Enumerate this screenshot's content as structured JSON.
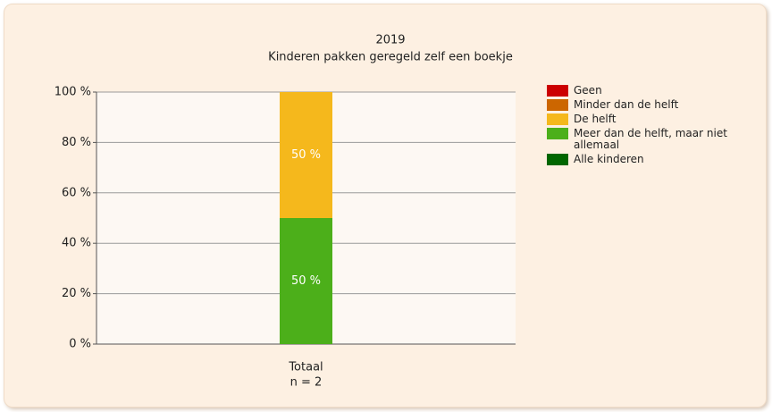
{
  "chart_data": {
    "type": "stacked_bar",
    "title": "2019",
    "subtitle": "Kinderen pakken geregeld zelf een boekje",
    "categories": [
      "Totaal"
    ],
    "category_notes": [
      "n = 2"
    ],
    "series": [
      {
        "name": "Geen",
        "color": "#cc0000",
        "values": [
          0
        ]
      },
      {
        "name": "Minder dan de helft",
        "color": "#cc6600",
        "values": [
          0
        ]
      },
      {
        "name": "De helft",
        "color": "#f5b81c",
        "values": [
          50
        ],
        "value_labels": [
          "50 %"
        ]
      },
      {
        "name": "Meer dan de helft, maar niet allemaal",
        "color": "#4caf1a",
        "values": [
          50
        ],
        "value_labels": [
          "50 %"
        ]
      },
      {
        "name": "Alle kinderen",
        "color": "#006600",
        "values": [
          0
        ]
      }
    ],
    "ylim": [
      0,
      100
    ],
    "yticks": [
      {
        "value": 0,
        "label": "0 %"
      },
      {
        "value": 20,
        "label": "20 %"
      },
      {
        "value": 40,
        "label": "40 %"
      },
      {
        "value": 60,
        "label": "60 %"
      },
      {
        "value": 80,
        "label": "80 %"
      },
      {
        "value": 100,
        "label": "100 %"
      }
    ],
    "grid": true,
    "legend": "right"
  }
}
